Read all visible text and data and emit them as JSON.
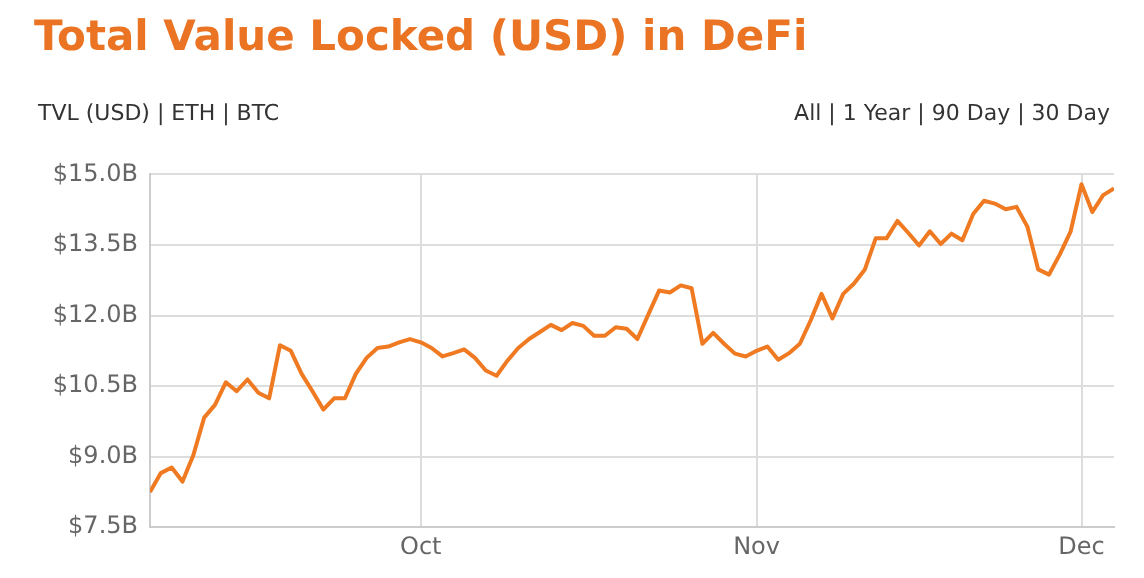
{
  "chart_data": {
    "type": "line",
    "title": "Total Value Locked (USD) in DeFi",
    "annotations": [
      "TVL (USD) | ETH | BTC",
      "All | 1 Year | 90 Day | 30 Day"
    ],
    "x": [
      "--09-06",
      "--09-07",
      "--09-08",
      "--09-09",
      "--09-10",
      "--09-11",
      "--09-12",
      "--09-13",
      "--09-14",
      "--09-15",
      "--09-16",
      "--09-17",
      "--09-18",
      "--09-19",
      "--09-20",
      "--09-21",
      "--09-22",
      "--09-23",
      "--09-24",
      "--09-25",
      "--09-26",
      "--09-27",
      "--09-28",
      "--09-29",
      "--09-30",
      "--10-01",
      "--10-02",
      "--10-03",
      "--10-04",
      "--10-05",
      "--10-06",
      "--10-07",
      "--10-08",
      "--10-09",
      "--10-10",
      "--10-11",
      "--10-12",
      "--10-13",
      "--10-14",
      "--10-15",
      "--10-16",
      "--10-17",
      "--10-18",
      "--10-19",
      "--10-20",
      "--10-21",
      "--10-22",
      "--10-23",
      "--10-24",
      "--10-25",
      "--10-26",
      "--10-27",
      "--10-28",
      "--10-29",
      "--10-30",
      "--10-31",
      "--11-01",
      "--11-02",
      "--11-03",
      "--11-04",
      "--11-05",
      "--11-06",
      "--11-07",
      "--11-08",
      "--11-09",
      "--11-10",
      "--11-11",
      "--11-12",
      "--11-13",
      "--11-14",
      "--11-15",
      "--11-16",
      "--11-17",
      "--11-18",
      "--11-19",
      "--11-20",
      "--11-21",
      "--11-22",
      "--11-23",
      "--11-24",
      "--11-25",
      "--11-26",
      "--11-27",
      "--11-28",
      "--11-29",
      "--11-30",
      "--12-01",
      "--12-02",
      "--12-03",
      "--12-04"
    ],
    "series": [
      {
        "color": "#ef7a22",
        "values": [
          8.25,
          8.65,
          8.77,
          8.47,
          9.03,
          9.83,
          10.1,
          10.58,
          10.39,
          10.64,
          10.36,
          10.24,
          11.37,
          11.25,
          10.76,
          10.39,
          10.0,
          10.24,
          10.24,
          10.76,
          11.1,
          11.31,
          11.34,
          11.43,
          11.5,
          11.43,
          11.31,
          11.13,
          11.2,
          11.28,
          11.1,
          10.83,
          10.72,
          11.04,
          11.31,
          11.5,
          11.65,
          11.8,
          11.69,
          11.84,
          11.78,
          11.57,
          11.57,
          11.75,
          11.72,
          11.5,
          12.02,
          12.53,
          12.49,
          12.64,
          12.58,
          11.4,
          11.63,
          11.4,
          11.19,
          11.13,
          11.25,
          11.34,
          11.06,
          11.2,
          11.4,
          11.9,
          12.46,
          11.94,
          12.46,
          12.68,
          12.98,
          13.64,
          13.64,
          14.01,
          13.76,
          13.49,
          13.79,
          13.52,
          13.74,
          13.6,
          14.16,
          14.44,
          14.38,
          14.26,
          14.31,
          13.89,
          12.98,
          12.87,
          13.3,
          13.79,
          14.79,
          14.2,
          14.56,
          14.7
        ]
      }
    ],
    "xlim": [
      "--09-06",
      "--12-04"
    ],
    "xticks": [
      {
        "value": "--10-01",
        "label": "Oct"
      },
      {
        "value": "--11-01",
        "label": "Nov"
      },
      {
        "value": "--12-01",
        "label": "Dec"
      }
    ],
    "ylim": [
      7.5,
      15
    ],
    "yticks": [
      {
        "value": 7.5,
        "label": "$7.5B"
      },
      {
        "value": 9,
        "label": "$9.0B"
      },
      {
        "value": 10.5,
        "label": "$10.5B"
      },
      {
        "value": 12,
        "label": "$12.0B"
      },
      {
        "value": 13.5,
        "label": "$13.5B"
      },
      {
        "value": 15,
        "label": "$15.0B"
      }
    ],
    "grid": true,
    "marker": "none",
    "line_style": "solid",
    "legend": false
  }
}
